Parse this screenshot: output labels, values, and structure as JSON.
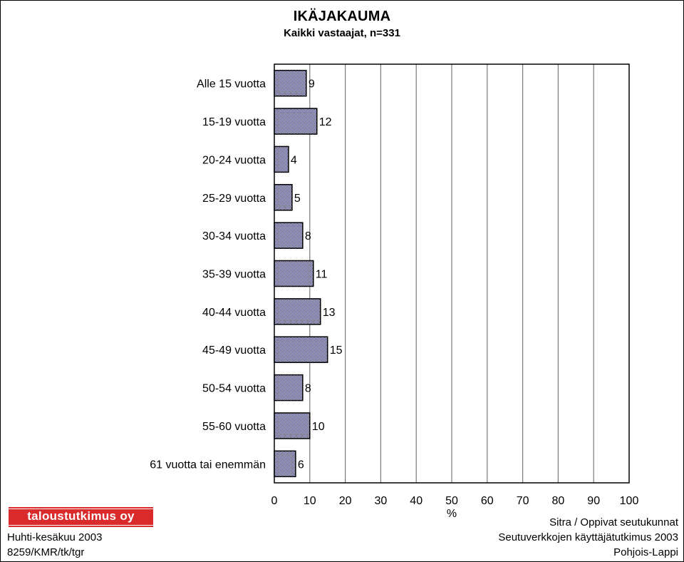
{
  "chart_data": {
    "type": "bar",
    "orientation": "horizontal",
    "title": "IKÄJAKAUMA",
    "subtitle": "Kaikki vastaajat, n=331",
    "categories": [
      "Alle 15 vuotta",
      "15-19 vuotta",
      "20-24 vuotta",
      "25-29 vuotta",
      "30-34 vuotta",
      "35-39 vuotta",
      "40-44 vuotta",
      "45-49 vuotta",
      "50-54 vuotta",
      "55-60 vuotta",
      "61 vuotta tai enemmän"
    ],
    "values": [
      9,
      12,
      4,
      5,
      8,
      11,
      13,
      15,
      8,
      10,
      6
    ],
    "xlabel": "%",
    "ylabel": "",
    "xlim": [
      0,
      100
    ],
    "xticks": [
      "0",
      "10",
      "20",
      "30",
      "40",
      "50",
      "60",
      "70",
      "80",
      "90",
      "100"
    ],
    "grid": true,
    "bar_color": "#9999ff"
  },
  "footer": {
    "logo_text": "taloustutkimus oy",
    "logo_color": "#d92b2b",
    "date": "Huhti-kesäkuu 2003",
    "code": "8259/KMR/tk/tgr",
    "right_line1": "Sitra / Oppivat seutukunnat",
    "right_line2": "Seutuverkkojen käyttäjätutkimus 2003",
    "right_line3": "Pohjois-Lappi"
  }
}
